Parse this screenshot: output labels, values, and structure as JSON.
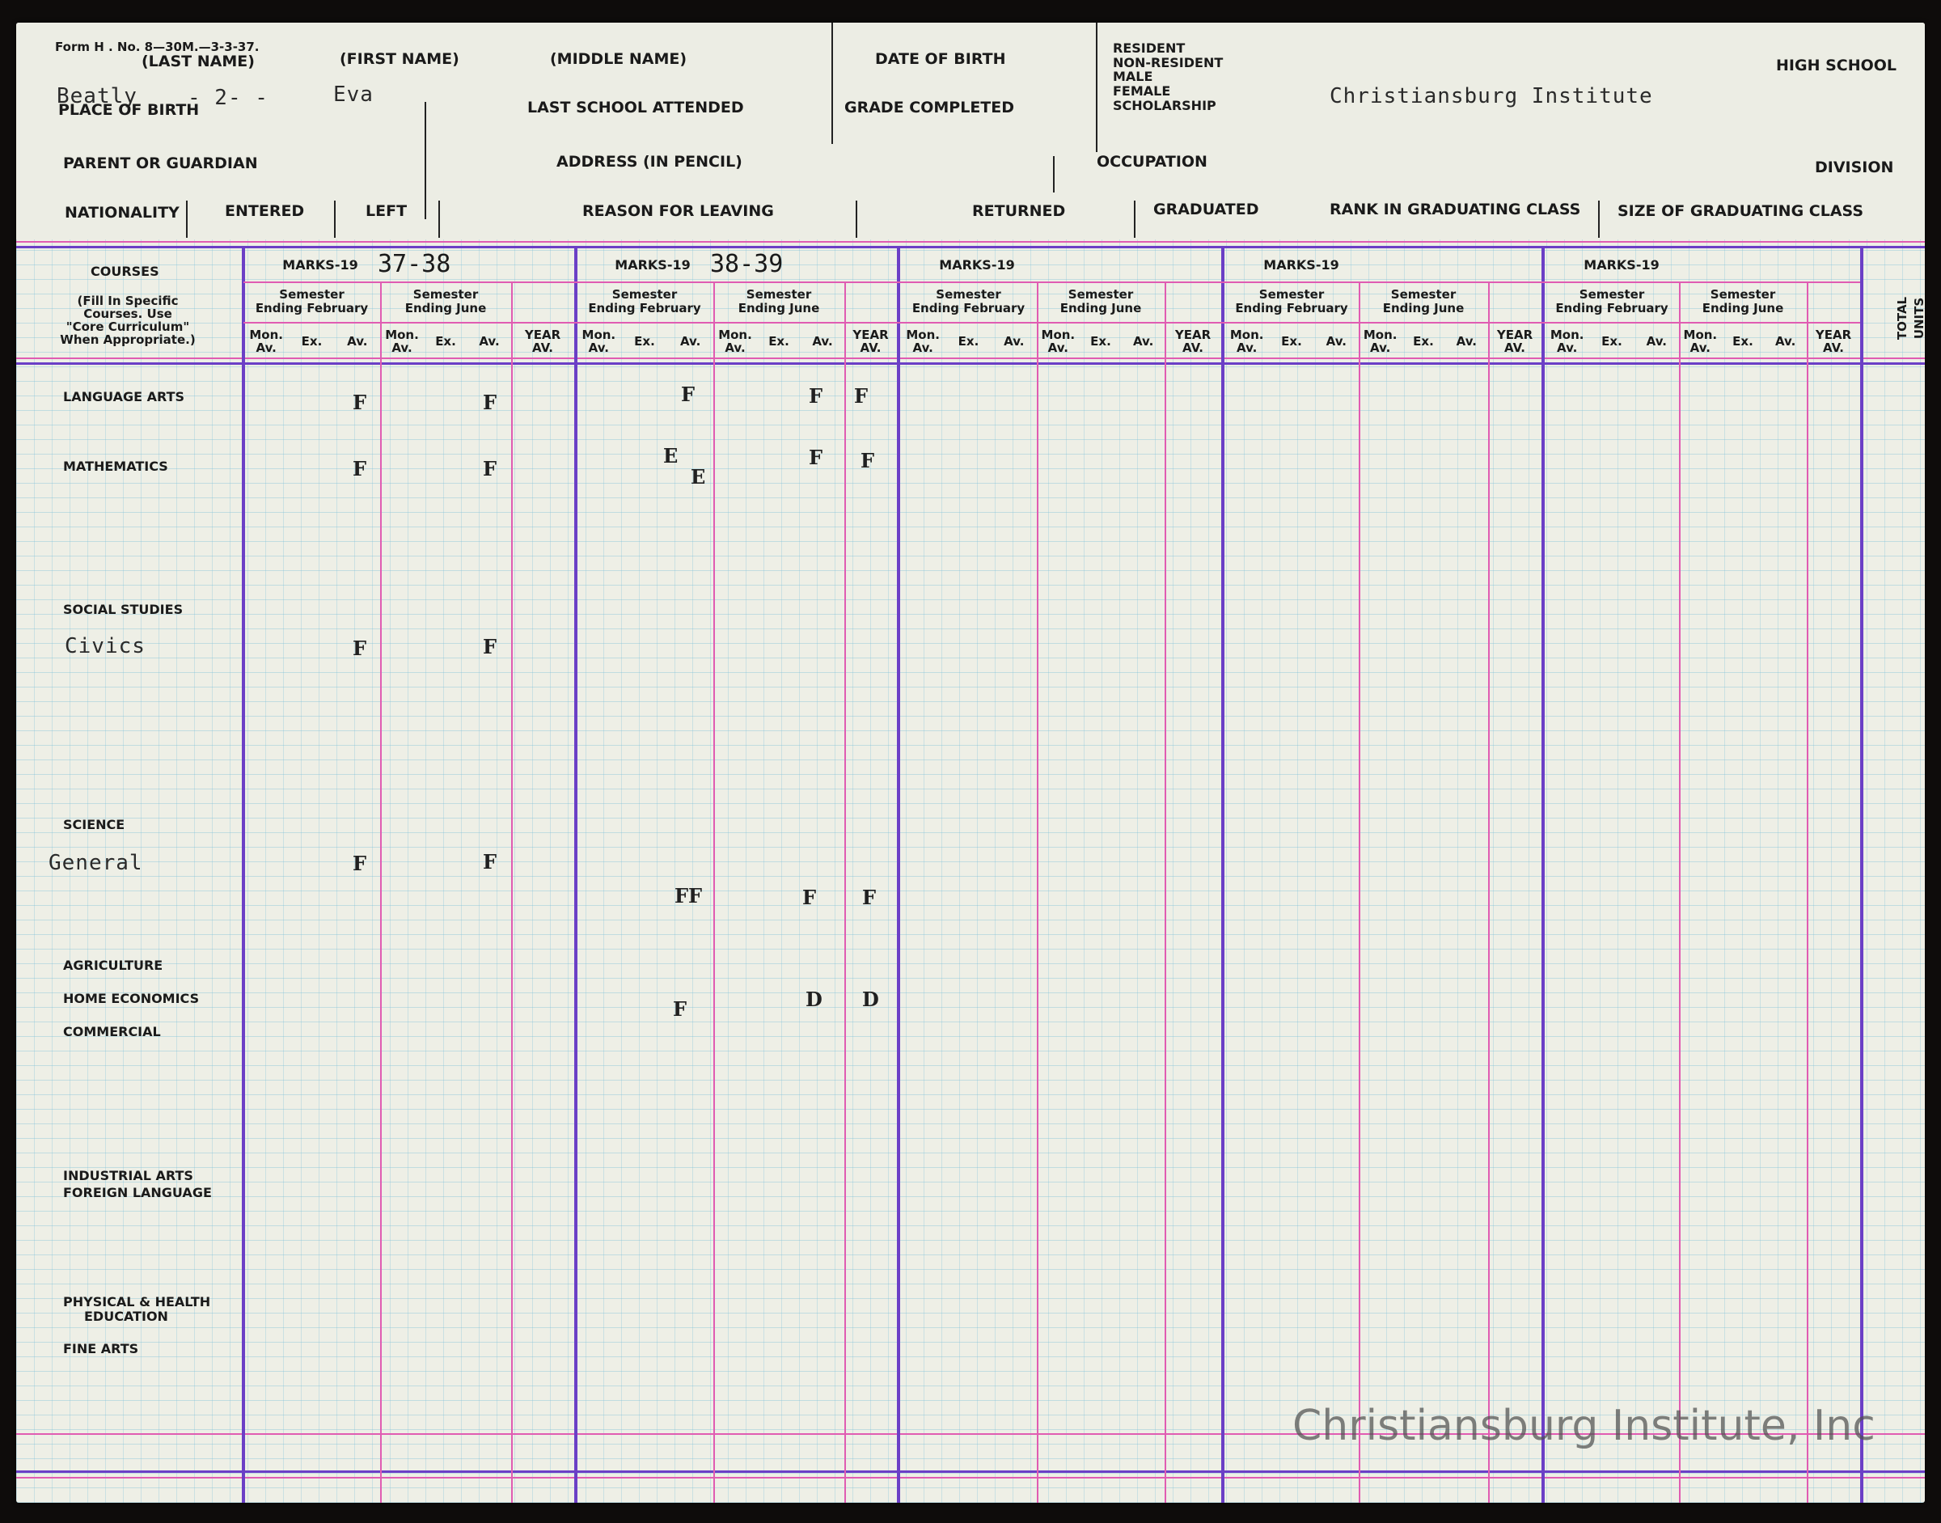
{
  "header": {
    "form_no": "Form H . No. 8—30M.—3-3-37.",
    "last_name_label": "(LAST NAME)",
    "first_name_label": "(FIRST NAME)",
    "middle_name_label": "(MIDDLE NAME)",
    "date_of_birth_label": "DATE OF BIRTH",
    "status_options": [
      "RESIDENT",
      "NON-RESIDENT",
      "MALE",
      "FEMALE",
      "SCHOLARSHIP"
    ],
    "high_school_label": "HIGH SCHOOL",
    "last_name_value": "Beatly",
    "last_name_scribble": "- 2- -",
    "first_name_value": "Eva",
    "place_of_birth_label": "PLACE OF BIRTH",
    "last_school_label": "LAST SCHOOL ATTENDED",
    "grade_completed_label": "GRADE COMPLETED",
    "school_value": "Christiansburg Institute",
    "parent_label": "PARENT OR GUARDIAN",
    "address_label": "ADDRESS (IN PENCIL)",
    "occupation_label": "OCCUPATION",
    "division_label": "DIVISION",
    "nationality_label": "NATIONALITY",
    "entered_label": "ENTERED",
    "left_label": "LEFT",
    "reason_label": "REASON FOR LEAVING",
    "returned_label": "RETURNED",
    "graduated_label": "GRADUATED",
    "rank_label": "RANK IN GRADUATING CLASS",
    "size_label": "SIZE OF GRADUATING CLASS"
  },
  "table": {
    "courses_header": "COURSES",
    "courses_note": [
      "(Fill In Specific",
      "Courses. Use",
      "\"Core Curriculum\"",
      "When Appropriate.)"
    ],
    "marks_label": "MARKS-19",
    "sem_feb": [
      "Semester",
      "Ending February"
    ],
    "sem_june": [
      "Semester",
      "Ending June"
    ],
    "col_mon": [
      "Mon.",
      "Av."
    ],
    "col_ex": "Ex.",
    "col_av": "Av.",
    "col_year": [
      "YEAR",
      "AV."
    ],
    "total_units": [
      "TOTAL",
      "UNITS"
    ],
    "years": [
      "37-38",
      "38-39",
      "",
      "",
      ""
    ]
  },
  "subjects": [
    {
      "label": "LANGUAGE ARTS"
    },
    {
      "label": "MATHEMATICS"
    },
    {
      "label": "SOCIAL STUDIES"
    },
    {
      "label": "SCIENCE"
    },
    {
      "label": "AGRICULTURE"
    },
    {
      "label": "HOME ECONOMICS"
    },
    {
      "label": "COMMERCIAL"
    },
    {
      "label": "INDUSTRIAL ARTS"
    },
    {
      "label": "FOREIGN LANGUAGE"
    },
    {
      "label": "PHYSICAL & HEALTH"
    },
    {
      "label": "EDUCATION"
    },
    {
      "label": "FINE ARTS"
    }
  ],
  "typed_courses": {
    "civics": "Civics",
    "general": "General"
  },
  "grades": {
    "lang_37_feb": "F",
    "lang_37_june": "F",
    "lang_38_feb": "F",
    "lang_38_june": "F",
    "lang_38_year": "F",
    "math_37_feb": "F",
    "math_37_june": "F",
    "math_38_feb_a": "E",
    "math_38_feb_b": "E",
    "math_38_june": "F",
    "math_38_year": "F",
    "civics_37_feb": "F",
    "civics_37_june": "F",
    "gen_37_feb": "F",
    "gen_37_june": "F",
    "gen_38_feb": "FF",
    "gen_38_june": "F",
    "gen_38_year": "F",
    "home_38_feb": "F",
    "home_38_june": "D",
    "home_38_year": "D"
  },
  "watermark": "Christiansburg Institute, Inc"
}
